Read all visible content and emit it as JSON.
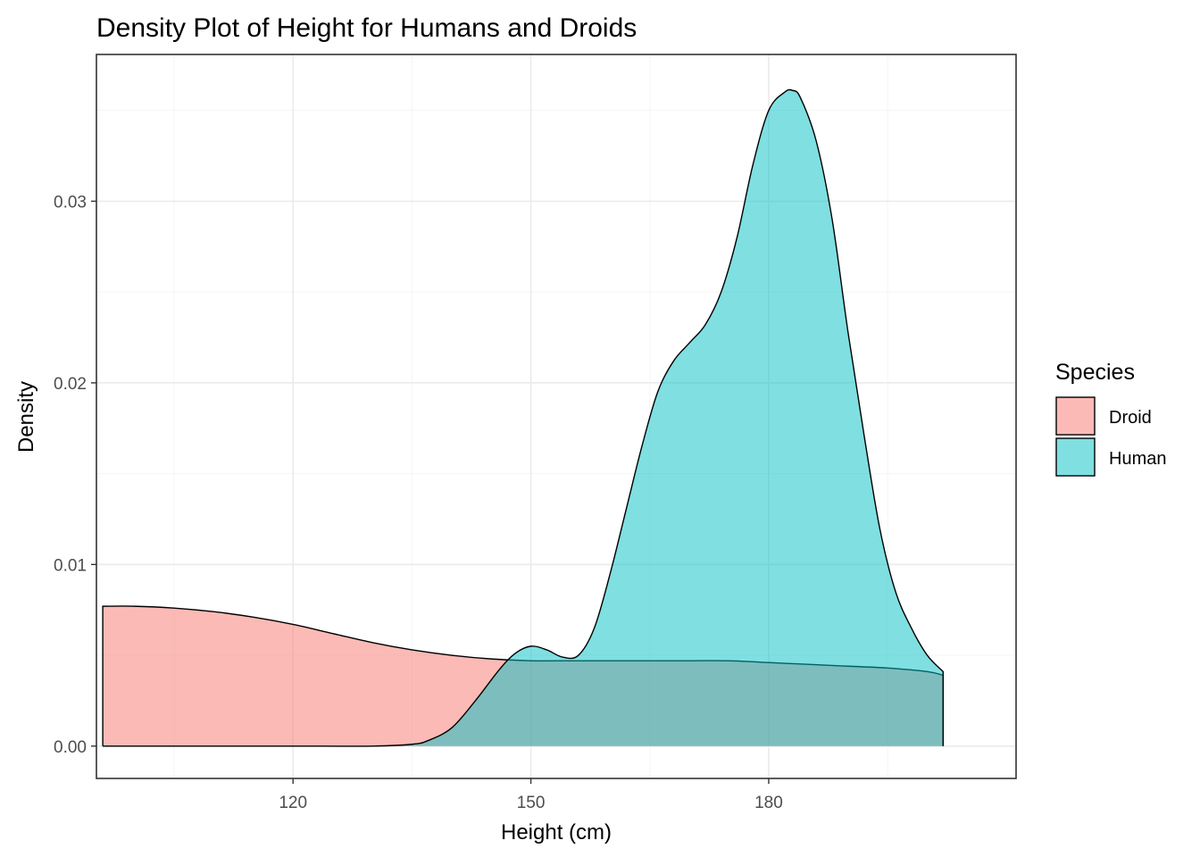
{
  "chart_data": {
    "type": "area",
    "title": "Density Plot of Height for Humans and Droids",
    "xlabel": "Height (cm)",
    "ylabel": "Density",
    "xlim": [
      95.2,
      211.2
    ],
    "ylim": [
      -0.00178,
      0.03808
    ],
    "x_ticks": [
      120,
      150,
      180
    ],
    "y_ticks": [
      0.0,
      0.01,
      0.02,
      0.03
    ],
    "x_tick_labels": [
      "120",
      "150",
      "180"
    ],
    "y_tick_labels": [
      "0.00",
      "0.01",
      "0.02",
      "0.03"
    ],
    "grid": true,
    "legend": {
      "title": "Species",
      "position": "right",
      "entries": [
        {
          "label": "Droid",
          "color": "#F8766D"
        },
        {
          "label": "Human",
          "color": "#00BFC4"
        }
      ]
    },
    "series": [
      {
        "name": "Droid",
        "color": "#F8766D",
        "opacity": 0.5,
        "x": [
          96,
          100,
          105,
          110,
          115,
          120,
          125,
          130,
          135,
          140,
          145,
          150,
          155,
          160,
          165,
          170,
          175,
          180,
          185,
          190,
          195,
          200,
          202
        ],
        "y": [
          0.0077,
          0.0077,
          0.0076,
          0.0074,
          0.0071,
          0.0067,
          0.0062,
          0.0057,
          0.0053,
          0.005,
          0.0048,
          0.0047,
          0.0047,
          0.0047,
          0.0047,
          0.0047,
          0.0047,
          0.0046,
          0.0045,
          0.0044,
          0.0043,
          0.0041,
          0.0039
        ]
      },
      {
        "name": "Human",
        "color": "#00BFC4",
        "opacity": 0.5,
        "x": [
          96,
          110,
          120,
          130,
          135,
          137,
          140,
          143,
          146,
          148,
          150,
          152,
          154,
          156,
          158,
          160,
          162,
          164,
          166,
          168,
          170,
          172,
          174,
          176,
          178,
          180,
          182,
          183,
          184,
          186,
          188,
          190,
          192,
          194,
          196,
          198,
          200,
          202
        ],
        "y": [
          0.0,
          0.0,
          0.0,
          0.0,
          0.0001,
          0.0003,
          0.001,
          0.0025,
          0.0042,
          0.0051,
          0.0055,
          0.0053,
          0.0049,
          0.005,
          0.0065,
          0.0095,
          0.013,
          0.0165,
          0.0195,
          0.0212,
          0.0222,
          0.0232,
          0.025,
          0.028,
          0.032,
          0.035,
          0.036,
          0.0361,
          0.0357,
          0.0333,
          0.029,
          0.0228,
          0.0172,
          0.012,
          0.0085,
          0.0065,
          0.005,
          0.0041
        ]
      }
    ]
  }
}
